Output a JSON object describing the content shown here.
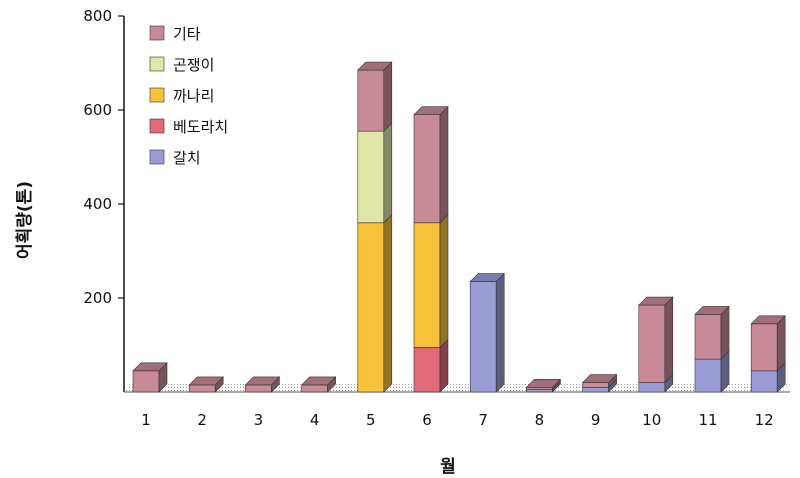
{
  "chart_data": {
    "type": "bar",
    "stacked": true,
    "title": "",
    "xlabel": "월",
    "ylabel": "어획량(톤)",
    "ylim": [
      0,
      800
    ],
    "yticks": [
      200,
      400,
      600,
      800
    ],
    "categories": [
      "1",
      "2",
      "3",
      "4",
      "5",
      "6",
      "7",
      "8",
      "9",
      "10",
      "11",
      "12"
    ],
    "series": [
      {
        "name": "갈치",
        "color": "#9a9cd6",
        "values": [
          0,
          0,
          0,
          0,
          0,
          0,
          235,
          5,
          10,
          20,
          70,
          45
        ]
      },
      {
        "name": "베도라치",
        "color": "#e06a78",
        "values": [
          0,
          0,
          0,
          0,
          0,
          95,
          0,
          0,
          0,
          0,
          0,
          0
        ]
      },
      {
        "name": "까나리",
        "color": "#f5c23a",
        "values": [
          0,
          0,
          0,
          0,
          360,
          265,
          0,
          0,
          0,
          0,
          0,
          0
        ]
      },
      {
        "name": "곤쟁이",
        "color": "#dfe6a6",
        "values": [
          0,
          0,
          0,
          0,
          195,
          0,
          0,
          0,
          0,
          0,
          0,
          0
        ]
      },
      {
        "name": "기타",
        "color": "#c98a98",
        "values": [
          45,
          15,
          15,
          15,
          130,
          230,
          0,
          5,
          10,
          165,
          95,
          100
        ]
      }
    ],
    "legend_position": "top-left",
    "grid": false
  }
}
